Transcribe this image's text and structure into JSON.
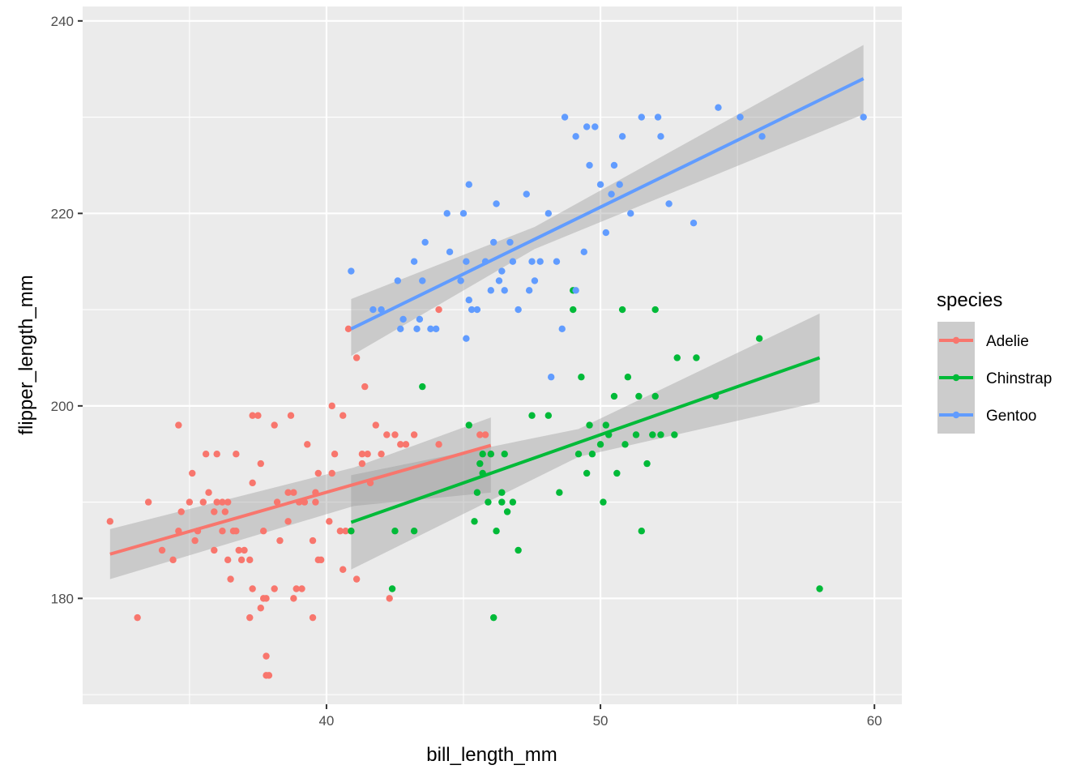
{
  "chart_data": {
    "type": "scatter",
    "xlabel": "bill_length_mm",
    "ylabel": "flipper_length_mm",
    "xlim": [
      31.1,
      61.0
    ],
    "ylim": [
      169.0,
      241.5
    ],
    "x_ticks": [
      40,
      50,
      60
    ],
    "y_ticks": [
      180,
      200,
      220,
      240
    ],
    "x_tick_labels": [
      "40",
      "50",
      "60"
    ],
    "y_tick_labels": [
      "180",
      "200",
      "220",
      "240"
    ],
    "grid": true,
    "legend": {
      "title": "species",
      "position": "right"
    },
    "series": [
      {
        "name": "Adelie",
        "color": "#F8766D",
        "points": [
          [
            32.1,
            188
          ],
          [
            33.1,
            178
          ],
          [
            33.5,
            190
          ],
          [
            34.0,
            185
          ],
          [
            34.4,
            184
          ],
          [
            34.6,
            187
          ],
          [
            34.6,
            198
          ],
          [
            34.7,
            189
          ],
          [
            35.0,
            190
          ],
          [
            35.1,
            193
          ],
          [
            35.2,
            186
          ],
          [
            35.3,
            187
          ],
          [
            35.5,
            190
          ],
          [
            35.6,
            195
          ],
          [
            35.7,
            191
          ],
          [
            35.9,
            189
          ],
          [
            35.9,
            185
          ],
          [
            36.0,
            190
          ],
          [
            36.0,
            195
          ],
          [
            36.2,
            187
          ],
          [
            36.2,
            190
          ],
          [
            36.3,
            189
          ],
          [
            36.4,
            184
          ],
          [
            36.4,
            190
          ],
          [
            36.5,
            182
          ],
          [
            36.6,
            187
          ],
          [
            36.7,
            187
          ],
          [
            36.7,
            195
          ],
          [
            36.8,
            185
          ],
          [
            36.9,
            184
          ],
          [
            37.0,
            185
          ],
          [
            37.2,
            184
          ],
          [
            37.2,
            178
          ],
          [
            37.3,
            181
          ],
          [
            37.3,
            192
          ],
          [
            37.3,
            199
          ],
          [
            37.5,
            199
          ],
          [
            37.6,
            194
          ],
          [
            37.6,
            179
          ],
          [
            37.7,
            180
          ],
          [
            37.7,
            187
          ],
          [
            37.8,
            174
          ],
          [
            37.8,
            172
          ],
          [
            37.8,
            180
          ],
          [
            37.9,
            172
          ],
          [
            38.1,
            181
          ],
          [
            38.1,
            198
          ],
          [
            38.2,
            190
          ],
          [
            38.3,
            186
          ],
          [
            38.6,
            191
          ],
          [
            38.6,
            188
          ],
          [
            38.7,
            199
          ],
          [
            38.8,
            191
          ],
          [
            38.8,
            180
          ],
          [
            38.9,
            181
          ],
          [
            39.0,
            190
          ],
          [
            39.1,
            181
          ],
          [
            39.2,
            190
          ],
          [
            39.3,
            196
          ],
          [
            39.5,
            178
          ],
          [
            39.5,
            186
          ],
          [
            39.6,
            191
          ],
          [
            39.6,
            190
          ],
          [
            39.7,
            184
          ],
          [
            39.7,
            193
          ],
          [
            39.8,
            184
          ],
          [
            40.1,
            188
          ],
          [
            40.2,
            193
          ],
          [
            40.2,
            200
          ],
          [
            40.3,
            195
          ],
          [
            40.5,
            187
          ],
          [
            40.6,
            199
          ],
          [
            40.6,
            183
          ],
          [
            40.7,
            187
          ],
          [
            40.8,
            208
          ],
          [
            40.9,
            187
          ],
          [
            41.1,
            205
          ],
          [
            41.1,
            182
          ],
          [
            41.3,
            195
          ],
          [
            41.3,
            194
          ],
          [
            41.4,
            202
          ],
          [
            41.5,
            195
          ],
          [
            41.6,
            192
          ],
          [
            41.8,
            198
          ],
          [
            42.0,
            195
          ],
          [
            42.2,
            197
          ],
          [
            42.3,
            180
          ],
          [
            42.5,
            197
          ],
          [
            42.7,
            196
          ],
          [
            42.9,
            196
          ],
          [
            43.2,
            197
          ],
          [
            44.1,
            210
          ],
          [
            44.1,
            196
          ],
          [
            45.6,
            197
          ],
          [
            45.8,
            197
          ],
          [
            46.0,
            195
          ]
        ],
        "fit_line": [
          [
            32.1,
            184.6
          ],
          [
            46.0,
            195.9
          ]
        ],
        "fit_band": {
          "x": [
            32.1,
            41.0,
            46.0
          ],
          "lower": [
            182.0,
            189.6,
            191.0
          ],
          "upper": [
            187.2,
            193.6,
            198.8
          ]
        }
      },
      {
        "name": "Chinstrap",
        "color": "#00BA38",
        "points": [
          [
            40.9,
            187
          ],
          [
            42.4,
            181
          ],
          [
            42.5,
            187
          ],
          [
            43.2,
            187
          ],
          [
            43.5,
            202
          ],
          [
            45.2,
            198
          ],
          [
            45.4,
            188
          ],
          [
            45.5,
            191
          ],
          [
            45.6,
            194
          ],
          [
            45.7,
            195
          ],
          [
            45.7,
            193
          ],
          [
            45.9,
            190
          ],
          [
            46.0,
            195
          ],
          [
            46.1,
            178
          ],
          [
            46.2,
            187
          ],
          [
            46.4,
            191
          ],
          [
            46.4,
            190
          ],
          [
            46.5,
            195
          ],
          [
            46.6,
            189
          ],
          [
            46.8,
            190
          ],
          [
            47.0,
            185
          ],
          [
            47.5,
            199
          ],
          [
            48.1,
            199
          ],
          [
            48.5,
            191
          ],
          [
            49.0,
            212
          ],
          [
            49.0,
            210
          ],
          [
            49.2,
            195
          ],
          [
            49.3,
            203
          ],
          [
            49.5,
            193
          ],
          [
            49.6,
            198
          ],
          [
            49.7,
            195
          ],
          [
            50.0,
            196
          ],
          [
            50.1,
            190
          ],
          [
            50.2,
            198
          ],
          [
            50.3,
            197
          ],
          [
            50.5,
            201
          ],
          [
            50.6,
            193
          ],
          [
            50.8,
            210
          ],
          [
            50.9,
            196
          ],
          [
            51.0,
            203
          ],
          [
            51.3,
            197
          ],
          [
            51.4,
            201
          ],
          [
            51.5,
            187
          ],
          [
            51.7,
            194
          ],
          [
            51.9,
            197
          ],
          [
            52.0,
            201
          ],
          [
            52.0,
            210
          ],
          [
            52.2,
            197
          ],
          [
            52.7,
            197
          ],
          [
            52.8,
            205
          ],
          [
            53.5,
            205
          ],
          [
            54.2,
            201
          ],
          [
            55.8,
            207
          ],
          [
            58.0,
            181
          ]
        ],
        "fit_line": [
          [
            40.9,
            187.9
          ],
          [
            58.0,
            205.0
          ]
        ],
        "fit_band": {
          "x": [
            40.9,
            49.2,
            58.0
          ],
          "lower": [
            183.0,
            194.7,
            200.4
          ],
          "upper": [
            192.8,
            197.6,
            209.6
          ]
        }
      },
      {
        "name": "Gentoo",
        "color": "#619CFF",
        "points": [
          [
            40.9,
            214
          ],
          [
            41.7,
            210
          ],
          [
            42.0,
            210
          ],
          [
            42.6,
            213
          ],
          [
            42.7,
            208
          ],
          [
            42.8,
            209
          ],
          [
            43.2,
            215
          ],
          [
            43.3,
            208
          ],
          [
            43.4,
            209
          ],
          [
            43.5,
            213
          ],
          [
            43.6,
            217
          ],
          [
            43.8,
            208
          ],
          [
            44.0,
            208
          ],
          [
            44.4,
            220
          ],
          [
            44.5,
            216
          ],
          [
            44.9,
            213
          ],
          [
            45.0,
            220
          ],
          [
            45.1,
            215
          ],
          [
            45.1,
            207
          ],
          [
            45.2,
            223
          ],
          [
            45.3,
            210
          ],
          [
            45.5,
            210
          ],
          [
            45.8,
            215
          ],
          [
            45.2,
            211
          ],
          [
            46.0,
            212
          ],
          [
            46.1,
            217
          ],
          [
            46.2,
            221
          ],
          [
            46.3,
            213
          ],
          [
            46.4,
            214
          ],
          [
            46.5,
            212
          ],
          [
            46.7,
            217
          ],
          [
            46.8,
            215
          ],
          [
            47.0,
            210
          ],
          [
            47.3,
            222
          ],
          [
            47.4,
            212
          ],
          [
            47.5,
            215
          ],
          [
            47.6,
            213
          ],
          [
            47.8,
            215
          ],
          [
            48.1,
            220
          ],
          [
            48.2,
            203
          ],
          [
            48.4,
            215
          ],
          [
            48.6,
            208
          ],
          [
            48.7,
            230
          ],
          [
            49.1,
            212
          ],
          [
            49.1,
            228
          ],
          [
            49.4,
            216
          ],
          [
            49.5,
            229
          ],
          [
            49.6,
            225
          ],
          [
            49.8,
            229
          ],
          [
            50.0,
            223
          ],
          [
            50.2,
            218
          ],
          [
            50.4,
            222
          ],
          [
            50.5,
            225
          ],
          [
            50.7,
            223
          ],
          [
            50.8,
            228
          ],
          [
            51.1,
            220
          ],
          [
            51.5,
            230
          ],
          [
            52.1,
            230
          ],
          [
            52.2,
            228
          ],
          [
            52.5,
            221
          ],
          [
            53.4,
            219
          ],
          [
            54.3,
            231
          ],
          [
            55.1,
            230
          ],
          [
            55.9,
            228
          ],
          [
            59.6,
            230
          ]
        ],
        "fit_line": [
          [
            40.9,
            208.0
          ],
          [
            59.6,
            234.0
          ]
        ],
        "fit_band": {
          "x": [
            40.9,
            47.6,
            59.6
          ],
          "lower": [
            205.2,
            216.3,
            230.3
          ],
          "upper": [
            211.1,
            218.6,
            237.5
          ]
        }
      }
    ]
  }
}
